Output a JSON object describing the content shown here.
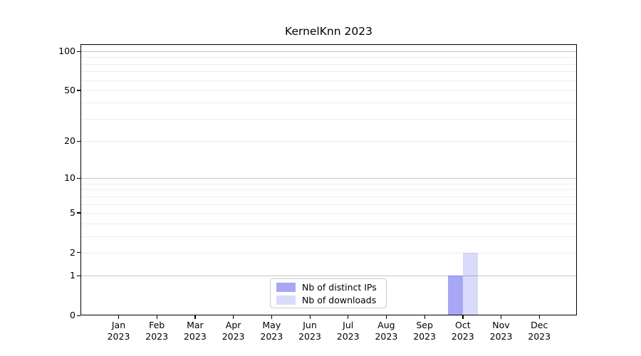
{
  "chart_data": {
    "type": "bar",
    "title": "KernelKnn 2023",
    "categories": [
      {
        "month": "Jan",
        "year": "2023"
      },
      {
        "month": "Feb",
        "year": "2023"
      },
      {
        "month": "Mar",
        "year": "2023"
      },
      {
        "month": "Apr",
        "year": "2023"
      },
      {
        "month": "May",
        "year": "2023"
      },
      {
        "month": "Jun",
        "year": "2023"
      },
      {
        "month": "Jul",
        "year": "2023"
      },
      {
        "month": "Aug",
        "year": "2023"
      },
      {
        "month": "Sep",
        "year": "2023"
      },
      {
        "month": "Oct",
        "year": "2023"
      },
      {
        "month": "Nov",
        "year": "2023"
      },
      {
        "month": "Dec",
        "year": "2023"
      }
    ],
    "series": [
      {
        "name": "Nb of distinct IPs",
        "color": "rgba(80,80,238,0.5)",
        "values": [
          0,
          0,
          0,
          0,
          0,
          0,
          0,
          0,
          0,
          1,
          0,
          0
        ]
      },
      {
        "name": "Nb of downloads",
        "color": "rgba(80,80,238,0.21)",
        "values": [
          0,
          0,
          0,
          0,
          0,
          0,
          0,
          0,
          0,
          2,
          0,
          0
        ]
      }
    ],
    "xlabel": "",
    "ylabel": "",
    "y_scale": "log1p",
    "y_max": 113.4,
    "y_ticks": [
      0,
      1,
      2,
      5,
      10,
      20,
      50,
      100
    ],
    "grid": {
      "major_values": [
        1,
        10,
        100
      ],
      "minor_values": [
        2,
        3,
        4,
        5,
        6,
        7,
        8,
        9,
        20,
        30,
        40,
        50,
        60,
        70,
        80,
        90,
        110
      ],
      "major_color": "#c6c6c6",
      "minor_color": "#ededed"
    },
    "legend_position": "lower center",
    "axis_color": "#000000",
    "background_color": "#ffffff"
  }
}
